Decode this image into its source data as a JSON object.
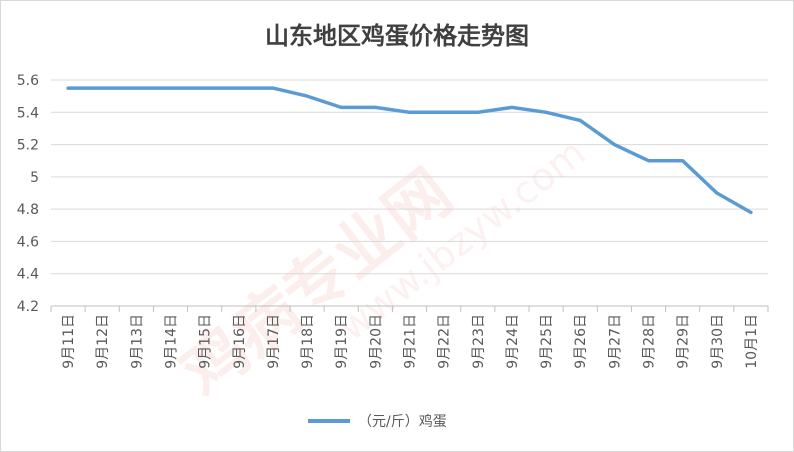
{
  "chart_data": {
    "type": "line",
    "title": "山东地区鸡蛋价格走势图",
    "categories": [
      "9月11日",
      "9月12日",
      "9月13日",
      "9月14日",
      "9月15日",
      "9月16日",
      "9月17日",
      "9月18日",
      "9月19日",
      "9月20日",
      "9月21日",
      "9月22日",
      "9月23日",
      "9月24日",
      "9月25日",
      "9月26日",
      "9月27日",
      "9月28日",
      "9月29日",
      "9月30日",
      "10月1日"
    ],
    "series": [
      {
        "name": "（元/斤）鸡蛋",
        "values": [
          5.55,
          5.55,
          5.55,
          5.55,
          5.55,
          5.55,
          5.55,
          5.5,
          5.43,
          5.43,
          5.4,
          5.4,
          5.4,
          5.43,
          5.4,
          5.35,
          5.2,
          5.1,
          5.1,
          4.9,
          4.78
        ]
      }
    ],
    "y_ticks": [
      "4.2",
      "4.4",
      "4.6",
      "4.8",
      "5",
      "5.2",
      "5.4",
      "5.6"
    ],
    "ylim": [
      4.2,
      5.6
    ],
    "grid": "horizontal",
    "legend": "bottom-center",
    "colors": {
      "line": "#5b9bd5",
      "grid": "#d9d9d9",
      "axis": "#bfbfbf"
    }
  },
  "watermark": {
    "text_cn": "鸡病专业网",
    "text_url": "www.jbzyw.com"
  }
}
